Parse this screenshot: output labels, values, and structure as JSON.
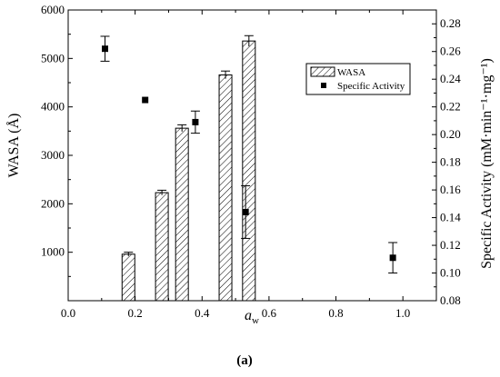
{
  "chart_data": {
    "type": "bar+scatter",
    "xlabel_main": "a",
    "xlabel_sub": "w",
    "ylabel_left": "WASA (Å)",
    "ylabel_right": "Specific Activity (mM·min⁻¹·mg⁻¹)",
    "xlim": [
      0.0,
      1.1
    ],
    "ylim_left": [
      0,
      6000
    ],
    "ylim_right": [
      0.08,
      0.29
    ],
    "x_ticks": [
      "0.0",
      "0.2",
      "0.4",
      "0.6",
      "0.8",
      "1.0"
    ],
    "y_left_ticks": [
      "1000",
      "2000",
      "3000",
      "4000",
      "5000",
      "6000"
    ],
    "y_right_ticks": [
      "0.08",
      "0.10",
      "0.12",
      "0.14",
      "0.16",
      "0.18",
      "0.20",
      "0.22",
      "0.24",
      "0.26",
      "0.28"
    ],
    "series": [
      {
        "name": "WASA",
        "kind": "bar",
        "x": [
          0.18,
          0.28,
          0.34,
          0.47,
          0.54
        ],
        "values": [
          960,
          2230,
          3560,
          4660,
          5360
        ],
        "errors": [
          40,
          50,
          70,
          80,
          110
        ]
      },
      {
        "name": "Specific Activity",
        "kind": "scatter",
        "x": [
          0.11,
          0.23,
          0.38,
          0.53,
          0.97
        ],
        "values": [
          0.262,
          0.225,
          0.209,
          0.144,
          0.111
        ],
        "errors": [
          0.009,
          0.0,
          0.008,
          0.019,
          0.011
        ]
      }
    ],
    "legend_position": "top-right",
    "grid": false
  },
  "caption": "(a)"
}
